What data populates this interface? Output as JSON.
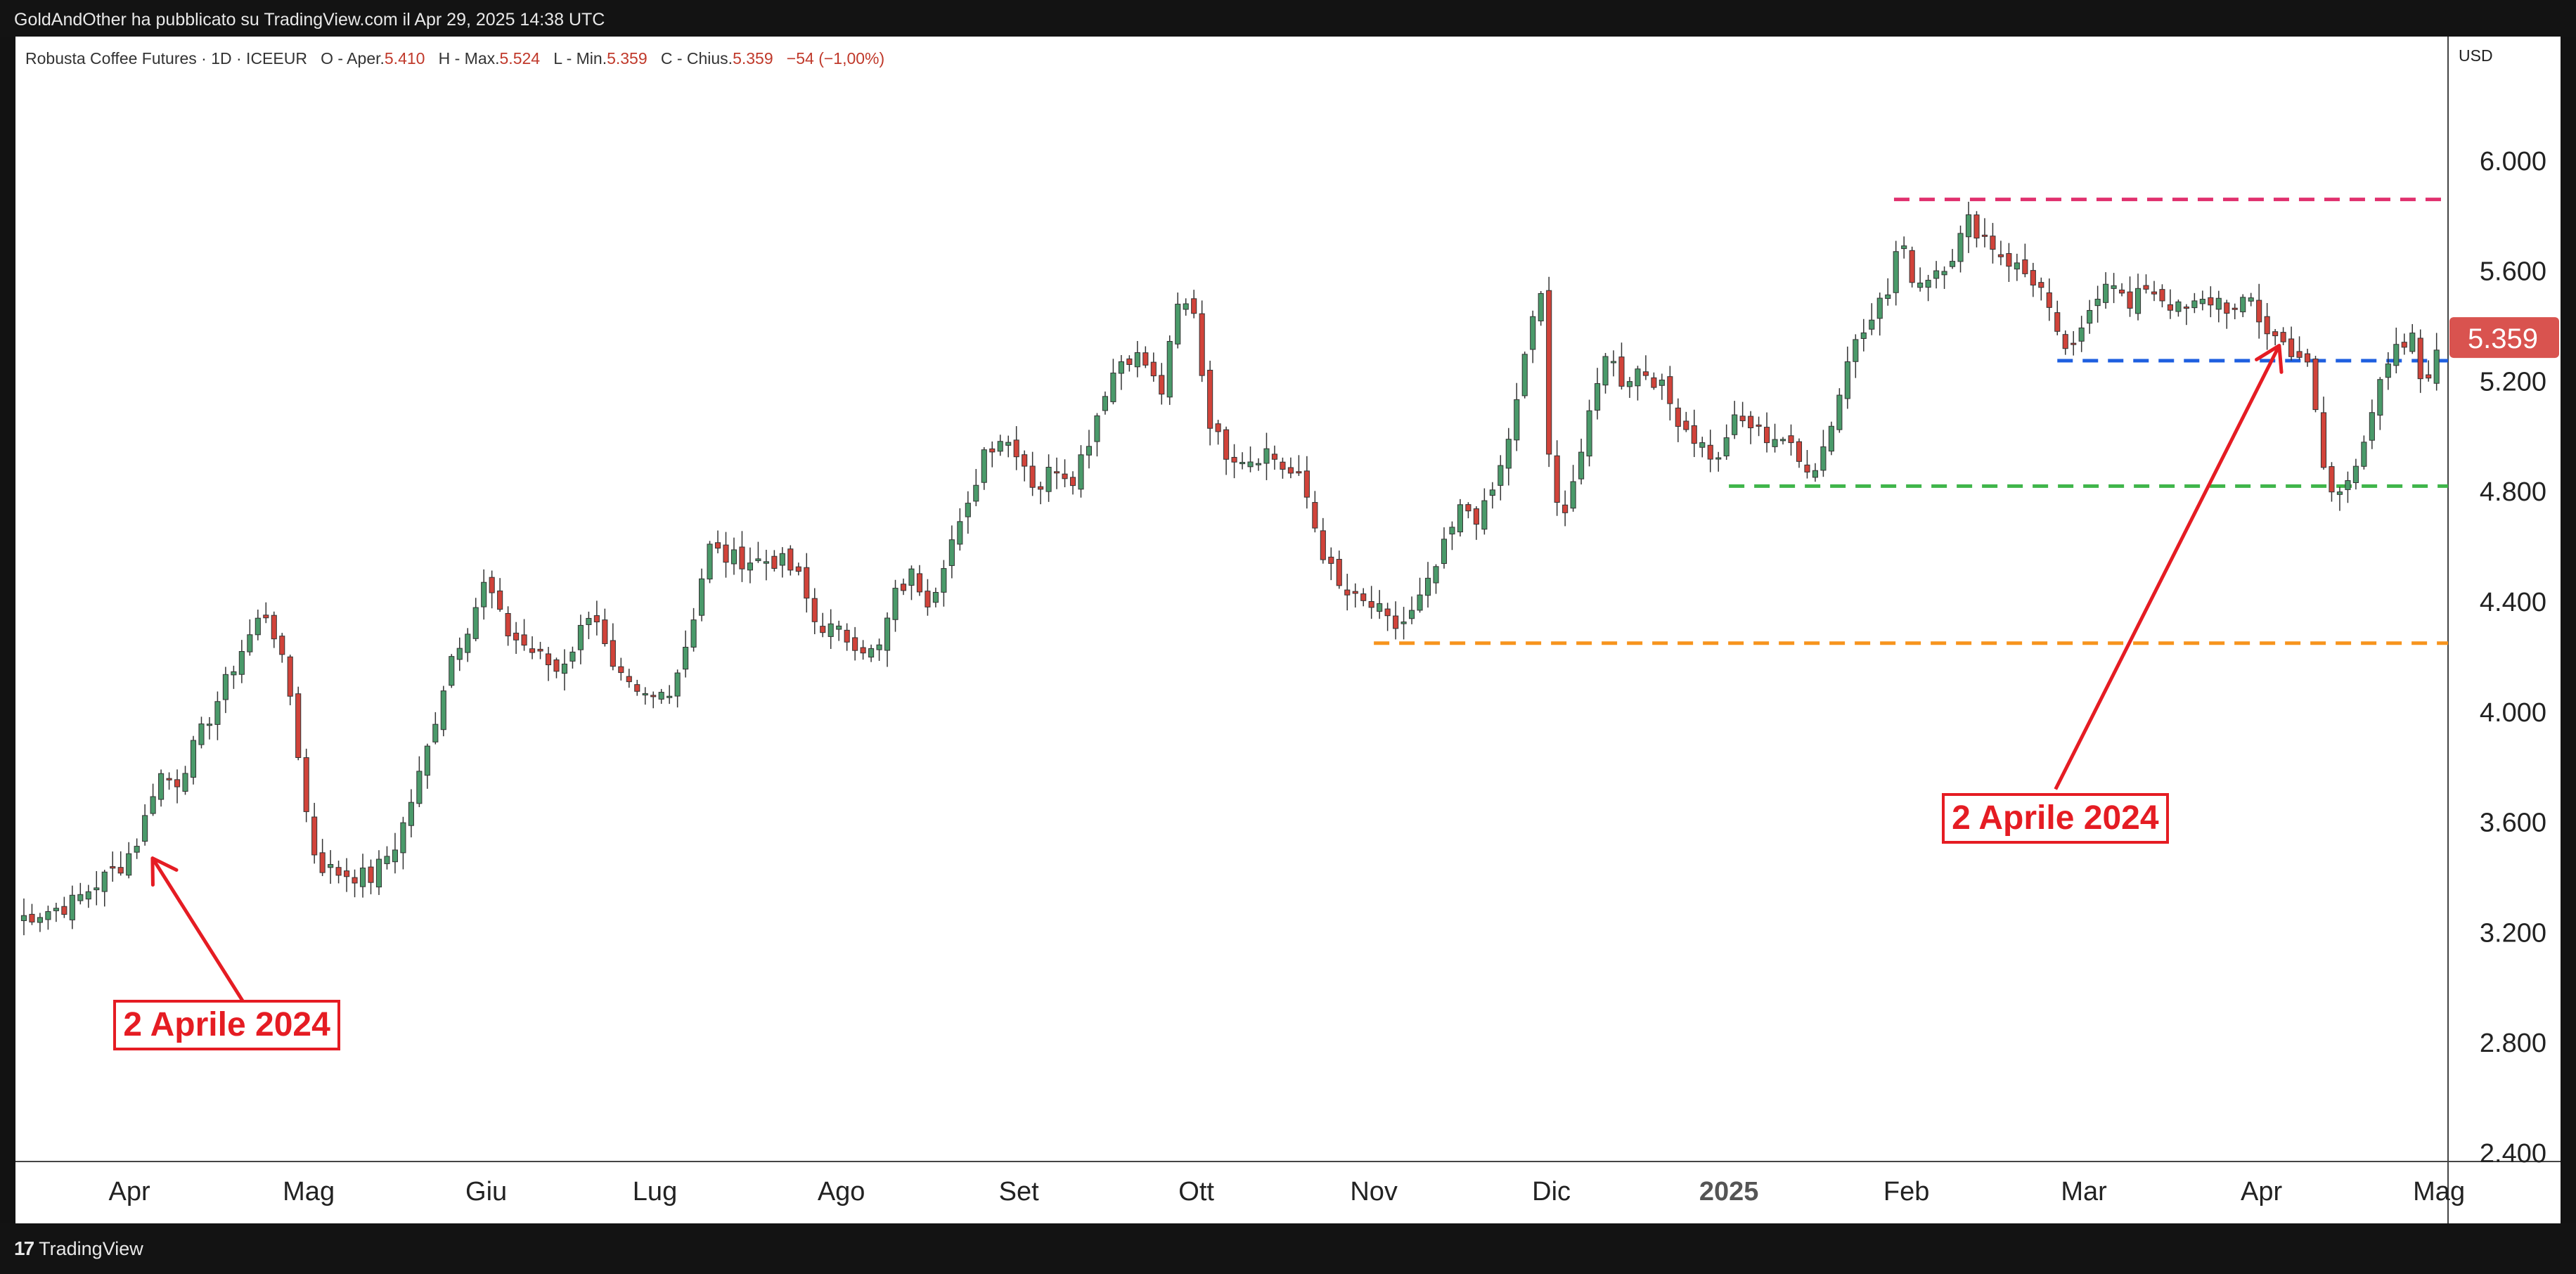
{
  "header": {
    "published": "GoldAndOther ha pubblicato su TradingView.com il Apr 29, 2025 14:38 UTC"
  },
  "legend": {
    "symbol": "Robusta Coffee Futures · 1D · ICEEUR",
    "open_label": "O - Aper.",
    "open": "5.410",
    "high_label": "H - Max.",
    "high": "5.524",
    "low_label": "L - Min.",
    "low": "5.359",
    "close_label": "C - Chius.",
    "close": "5.359",
    "change": "−54 (−1,00%)"
  },
  "footer": {
    "brand": "TradingView",
    "brand_mark": "17"
  },
  "colors": {
    "up": "#4a9a6a",
    "down": "#d1433a",
    "price_tag": "#d9534f",
    "line_magenta": "#e0306e",
    "line_blue": "#1e5fe0",
    "line_green": "#3fb54a",
    "line_orange": "#f7941d",
    "annotation": "#e51c23"
  },
  "chart_data": {
    "type": "candlestick",
    "currency": "USD",
    "current_price": "5.359",
    "y_ticks": [
      {
        "v": 2400,
        "label": "2.400"
      },
      {
        "v": 2800,
        "label": "2.800"
      },
      {
        "v": 3200,
        "label": "3.200"
      },
      {
        "v": 3600,
        "label": "3.600"
      },
      {
        "v": 4000,
        "label": "4.000"
      },
      {
        "v": 4400,
        "label": "4.400"
      },
      {
        "v": 4800,
        "label": "4.800"
      },
      {
        "v": 5200,
        "label": "5.200"
      },
      {
        "v": 5600,
        "label": "5.600"
      },
      {
        "v": 6000,
        "label": "6.000"
      }
    ],
    "x_ticks": [
      {
        "t": 0.04,
        "label": "Apr",
        "bold": false
      },
      {
        "t": 1.05,
        "label": "Mag",
        "bold": false
      },
      {
        "t": 2.05,
        "label": "Giu",
        "bold": false
      },
      {
        "t": 3.0,
        "label": "Lug",
        "bold": false
      },
      {
        "t": 4.05,
        "label": "Ago",
        "bold": false
      },
      {
        "t": 5.05,
        "label": "Set",
        "bold": false
      },
      {
        "t": 6.05,
        "label": "Ott",
        "bold": false
      },
      {
        "t": 7.05,
        "label": "Nov",
        "bold": false
      },
      {
        "t": 8.05,
        "label": "Dic",
        "bold": false
      },
      {
        "t": 9.05,
        "label": "2025",
        "bold": true
      },
      {
        "t": 10.05,
        "label": "Feb",
        "bold": false
      },
      {
        "t": 11.05,
        "label": "Mar",
        "bold": false
      },
      {
        "t": 12.05,
        "label": "Apr",
        "bold": false
      },
      {
        "t": 13.05,
        "label": "Mag",
        "bold": false
      }
    ],
    "anchors": [
      [
        -0.6,
        3250
      ],
      [
        -0.3,
        3300
      ],
      [
        0,
        3450
      ],
      [
        0.1,
        3550
      ],
      [
        0.2,
        3780
      ],
      [
        0.3,
        3740
      ],
      [
        0.45,
        3930
      ],
      [
        0.55,
        4060
      ],
      [
        0.65,
        4200
      ],
      [
        0.8,
        4370
      ],
      [
        0.85,
        4300
      ],
      [
        0.95,
        4050
      ],
      [
        1.05,
        3570
      ],
      [
        1.1,
        3450
      ],
      [
        1.2,
        3420
      ],
      [
        1.4,
        3400
      ],
      [
        1.55,
        3530
      ],
      [
        1.7,
        3820
      ],
      [
        1.85,
        4200
      ],
      [
        1.95,
        4320
      ],
      [
        2.05,
        4480
      ],
      [
        2.15,
        4300
      ],
      [
        2.25,
        4250
      ],
      [
        2.35,
        4200
      ],
      [
        2.45,
        4150
      ],
      [
        2.55,
        4250
      ],
      [
        2.65,
        4400
      ],
      [
        2.75,
        4150
      ],
      [
        2.9,
        4050
      ],
      [
        3.0,
        4050
      ],
      [
        3.1,
        4100
      ],
      [
        3.2,
        4300
      ],
      [
        3.3,
        4600
      ],
      [
        3.4,
        4560
      ],
      [
        3.55,
        4550
      ],
      [
        3.7,
        4550
      ],
      [
        3.8,
        4500
      ],
      [
        3.9,
        4330
      ],
      [
        4.05,
        4280
      ],
      [
        4.15,
        4250
      ],
      [
        4.25,
        4200
      ],
      [
        4.35,
        4420
      ],
      [
        4.45,
        4500
      ],
      [
        4.55,
        4400
      ],
      [
        4.65,
        4600
      ],
      [
        4.75,
        4700
      ],
      [
        4.85,
        4950
      ],
      [
        4.95,
        5000
      ],
      [
        5.05,
        4950
      ],
      [
        5.15,
        4800
      ],
      [
        5.25,
        4900
      ],
      [
        5.35,
        4850
      ],
      [
        5.45,
        5000
      ],
      [
        5.55,
        5200
      ],
      [
        5.65,
        5300
      ],
      [
        5.75,
        5280
      ],
      [
        5.85,
        5150
      ],
      [
        5.95,
        5480
      ],
      [
        6.05,
        5460
      ],
      [
        6.1,
        5100
      ],
      [
        6.2,
        4950
      ],
      [
        6.35,
        4920
      ],
      [
        6.45,
        4950
      ],
      [
        6.55,
        4880
      ],
      [
        6.65,
        4830
      ],
      [
        6.75,
        4600
      ],
      [
        6.85,
        4450
      ],
      [
        6.95,
        4400
      ],
      [
        7.05,
        4380
      ],
      [
        7.1,
        4350
      ],
      [
        7.15,
        4300
      ],
      [
        7.25,
        4340
      ],
      [
        7.35,
        4450
      ],
      [
        7.45,
        4600
      ],
      [
        7.55,
        4750
      ],
      [
        7.65,
        4700
      ],
      [
        7.75,
        4850
      ],
      [
        7.85,
        5100
      ],
      [
        7.92,
        5350
      ],
      [
        7.98,
        5550
      ],
      [
        8.0,
        5500
      ],
      [
        8.04,
        4850
      ],
      [
        8.1,
        4700
      ],
      [
        8.2,
        4900
      ],
      [
        8.3,
        5150
      ],
      [
        8.35,
        5320
      ],
      [
        8.45,
        5200
      ],
      [
        8.55,
        5250
      ],
      [
        8.65,
        5200
      ],
      [
        8.75,
        5080
      ],
      [
        8.85,
        5000
      ],
      [
        9.0,
        4900
      ],
      [
        9.05,
        5050
      ],
      [
        9.15,
        5050
      ],
      [
        9.25,
        5000
      ],
      [
        9.35,
        5000
      ],
      [
        9.45,
        4900
      ],
      [
        9.55,
        4900
      ],
      [
        9.65,
        5100
      ],
      [
        9.75,
        5350
      ],
      [
        9.85,
        5450
      ],
      [
        9.95,
        5520
      ],
      [
        10.0,
        5700
      ],
      [
        10.05,
        5650
      ],
      [
        10.1,
        5550
      ],
      [
        10.2,
        5600
      ],
      [
        10.3,
        5650
      ],
      [
        10.4,
        5780
      ],
      [
        10.5,
        5720
      ],
      [
        10.6,
        5650
      ],
      [
        10.7,
        5600
      ],
      [
        10.8,
        5550
      ],
      [
        10.9,
        5350
      ],
      [
        11.0,
        5300
      ],
      [
        11.1,
        5500
      ],
      [
        11.2,
        5600
      ],
      [
        11.3,
        5450
      ],
      [
        11.4,
        5550
      ],
      [
        11.5,
        5500
      ],
      [
        11.6,
        5450
      ],
      [
        11.7,
        5480
      ],
      [
        11.8,
        5500
      ],
      [
        11.9,
        5450
      ],
      [
        12.0,
        5500
      ],
      [
        12.05,
        5400
      ],
      [
        12.15,
        5350
      ],
      [
        12.25,
        5300
      ],
      [
        12.3,
        5280
      ],
      [
        12.35,
        5100
      ],
      [
        12.42,
        4800
      ],
      [
        12.5,
        4790
      ],
      [
        12.6,
        4950
      ],
      [
        12.7,
        5150
      ],
      [
        12.8,
        5300
      ],
      [
        12.9,
        5350
      ],
      [
        12.95,
        5200
      ],
      [
        13.05,
        5300
      ],
      [
        13.15,
        5380
      ],
      [
        13.25,
        5410
      ],
      [
        13.28,
        5359
      ]
    ],
    "levels": [
      {
        "name": "level-magenta",
        "price": 5860,
        "t0": 9.98,
        "t1": 13.38,
        "color": "#e0306e"
      },
      {
        "name": "level-blue",
        "price": 5275,
        "t0": 10.9,
        "t1": 13.38,
        "color": "#1e5fe0"
      },
      {
        "name": "level-green",
        "price": 4820,
        "t0": 9.05,
        "t1": 13.38,
        "color": "#3fb54a"
      },
      {
        "name": "level-orange",
        "price": 4250,
        "t0": 7.05,
        "t1": 13.38,
        "color": "#f7941d"
      }
    ],
    "annotations": [
      {
        "text": "2 Aprile 2024",
        "box_t": -0.05,
        "box_p": 2870,
        "arrow_from": [
          0.68,
          2950
        ],
        "arrow_to": [
          0.17,
          3470
        ]
      },
      {
        "text": "2 Aprile 2024",
        "box_t": 10.25,
        "box_p": 3620,
        "arrow_from": [
          10.89,
          3720
        ],
        "arrow_to": [
          12.15,
          5330
        ]
      }
    ]
  }
}
